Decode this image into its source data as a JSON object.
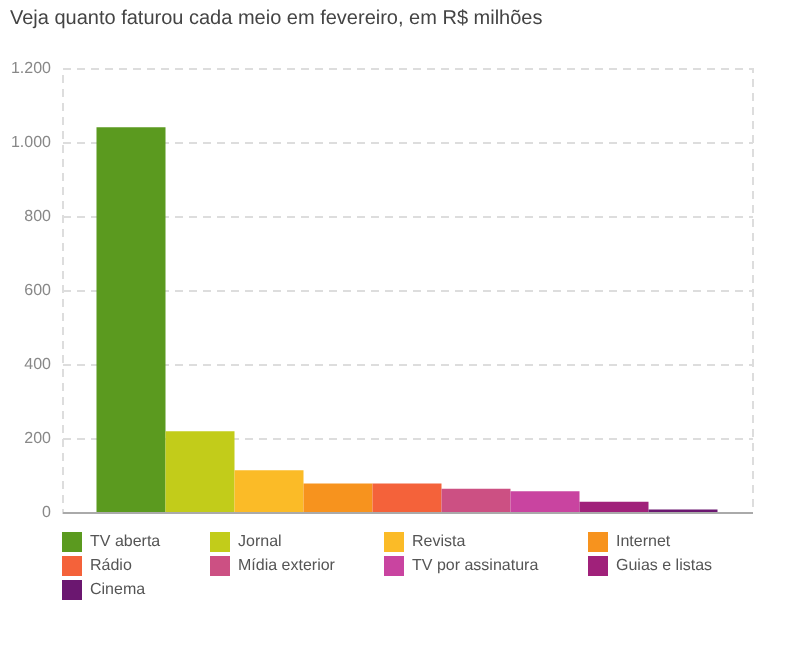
{
  "chart_data": {
    "type": "bar",
    "title": "Veja quanto faturou cada meio em fevereiro, em R$ milhões",
    "categories": [
      null
    ],
    "series": [
      {
        "name": "TV aberta",
        "color": "#5b9a1f",
        "values": [
          1040
        ]
      },
      {
        "name": "Jornal",
        "color": "#c2cc1a",
        "values": [
          218
        ]
      },
      {
        "name": "Revista",
        "color": "#fbbb27",
        "values": [
          113
        ]
      },
      {
        "name": "Internet",
        "color": "#f7931e",
        "values": [
          77
        ]
      },
      {
        "name": "Rádio",
        "color": "#f4623a",
        "values": [
          77
        ]
      },
      {
        "name": "Mídia exterior",
        "color": "#cc5083",
        "values": [
          63
        ]
      },
      {
        "name": "TV por assinatura",
        "color": "#c944a0",
        "values": [
          56
        ]
      },
      {
        "name": "Guias e listas",
        "color": "#a0217a",
        "values": [
          28
        ]
      },
      {
        "name": "Cinema",
        "color": "#6b1770",
        "values": [
          7
        ]
      }
    ],
    "ylim": [
      0,
      1200
    ],
    "yticks": [
      0,
      200,
      400,
      600,
      800,
      {
        "value": 1000,
        "label": "1.000"
      },
      {
        "value": 1200,
        "label": "1.200"
      }
    ],
    "grid": "y",
    "legend": "bottom",
    "tick_labels": "y"
  }
}
